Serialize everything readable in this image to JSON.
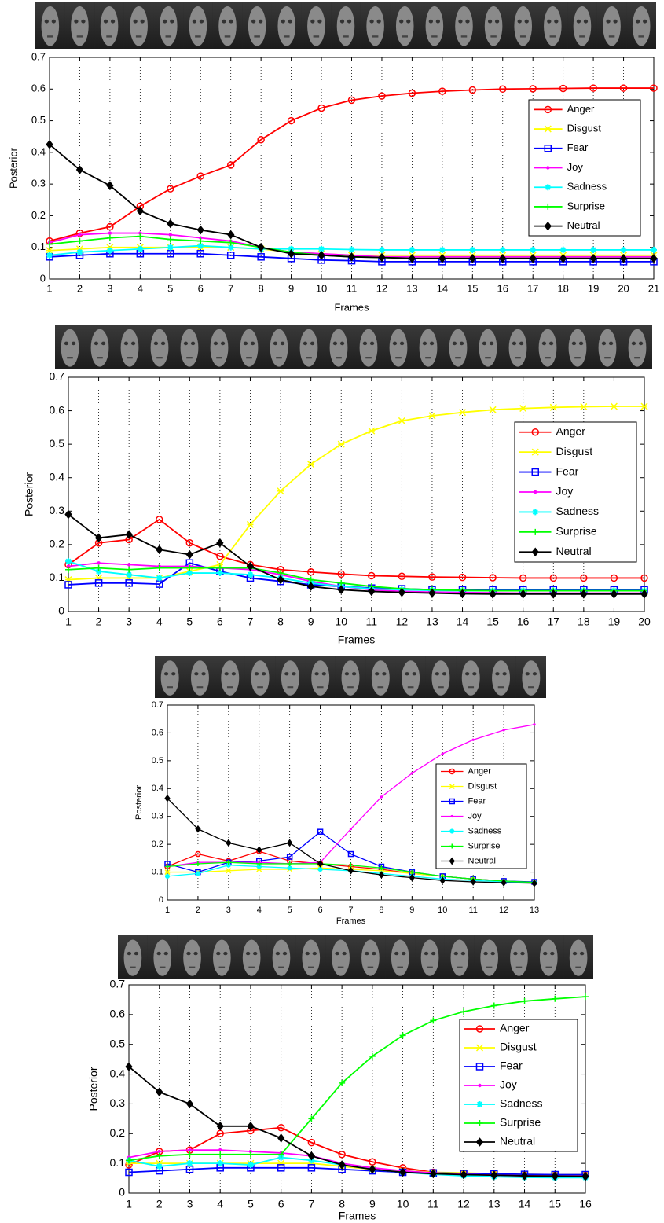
{
  "chart_data": [
    {
      "type": "line",
      "xlabel": "Frames",
      "ylabel": "Posterior",
      "x": [
        1,
        2,
        3,
        4,
        5,
        6,
        7,
        8,
        9,
        10,
        11,
        12,
        13,
        14,
        15,
        16,
        17,
        18,
        19,
        20,
        21
      ],
      "xlim": [
        1,
        21
      ],
      "xticks": [
        1,
        2,
        3,
        4,
        5,
        6,
        7,
        8,
        9,
        10,
        11,
        12,
        13,
        14,
        15,
        16,
        17,
        18,
        19,
        20,
        21
      ],
      "ylim": [
        0,
        0.7
      ],
      "yticks": [
        0,
        0.1,
        0.2,
        0.3,
        0.4,
        0.5,
        0.6,
        0.7
      ],
      "xgrid": true,
      "legend": "right",
      "series": [
        {
          "name": "Anger",
          "color": "#ff0000",
          "marker": "o",
          "values": [
            0.12,
            0.145,
            0.165,
            0.23,
            0.285,
            0.325,
            0.36,
            0.44,
            0.5,
            0.54,
            0.565,
            0.578,
            0.587,
            0.593,
            0.597,
            0.6,
            0.601,
            0.602,
            0.603,
            0.603,
            0.603
          ]
        },
        {
          "name": "Disgust",
          "color": "#ffff00",
          "marker": "x",
          "values": [
            0.09,
            0.095,
            0.1,
            0.1,
            0.1,
            0.1,
            0.1,
            0.095,
            0.085,
            0.08,
            0.075,
            0.075,
            0.075,
            0.075,
            0.075,
            0.075,
            0.075,
            0.075,
            0.075,
            0.075,
            0.075
          ]
        },
        {
          "name": "Fear",
          "color": "#0000ff",
          "marker": "s",
          "values": [
            0.07,
            0.075,
            0.08,
            0.08,
            0.08,
            0.08,
            0.075,
            0.07,
            0.065,
            0.06,
            0.058,
            0.055,
            0.055,
            0.055,
            0.055,
            0.055,
            0.055,
            0.055,
            0.055,
            0.055,
            0.055
          ]
        },
        {
          "name": "Joy",
          "color": "#ff00ff",
          "marker": ".",
          "values": [
            0.115,
            0.14,
            0.145,
            0.145,
            0.14,
            0.13,
            0.12,
            0.1,
            0.085,
            0.08,
            0.075,
            0.07,
            0.07,
            0.07,
            0.07,
            0.07,
            0.07,
            0.07,
            0.07,
            0.07,
            0.07
          ]
        },
        {
          "name": "Sadness",
          "color": "#00ffff",
          "marker": "*",
          "values": [
            0.075,
            0.085,
            0.09,
            0.095,
            0.1,
            0.105,
            0.1,
            0.095,
            0.095,
            0.095,
            0.093,
            0.092,
            0.092,
            0.092,
            0.092,
            0.092,
            0.092,
            0.092,
            0.092,
            0.092,
            0.092
          ]
        },
        {
          "name": "Surprise",
          "color": "#00ff00",
          "marker": "+",
          "values": [
            0.11,
            0.12,
            0.13,
            0.135,
            0.125,
            0.12,
            0.115,
            0.1,
            0.085,
            0.075,
            0.07,
            0.068,
            0.065,
            0.065,
            0.065,
            0.065,
            0.065,
            0.065,
            0.065,
            0.065,
            0.065
          ]
        },
        {
          "name": "Neutral",
          "color": "#000000",
          "marker": "d",
          "values": [
            0.425,
            0.345,
            0.295,
            0.215,
            0.175,
            0.155,
            0.14,
            0.1,
            0.08,
            0.075,
            0.07,
            0.068,
            0.065,
            0.065,
            0.065,
            0.065,
            0.065,
            0.065,
            0.065,
            0.065,
            0.065
          ]
        }
      ]
    },
    {
      "type": "line",
      "xlabel": "Frames",
      "ylabel": "Posterior",
      "x": [
        1,
        2,
        3,
        4,
        5,
        6,
        7,
        8,
        9,
        10,
        11,
        12,
        13,
        14,
        15,
        16,
        17,
        18,
        19,
        20
      ],
      "xlim": [
        1,
        20
      ],
      "xticks": [
        1,
        2,
        3,
        4,
        5,
        6,
        7,
        8,
        9,
        10,
        11,
        12,
        13,
        14,
        15,
        16,
        17,
        18,
        19,
        20
      ],
      "ylim": [
        0,
        0.7
      ],
      "yticks": [
        0,
        0.1,
        0.2,
        0.3,
        0.4,
        0.5,
        0.6,
        0.7
      ],
      "xgrid": true,
      "legend": "right",
      "series": [
        {
          "name": "Anger",
          "color": "#ff0000",
          "marker": "o",
          "values": [
            0.14,
            0.205,
            0.215,
            0.275,
            0.205,
            0.165,
            0.14,
            0.125,
            0.118,
            0.112,
            0.107,
            0.105,
            0.103,
            0.102,
            0.101,
            0.1,
            0.1,
            0.1,
            0.1,
            0.1
          ]
        },
        {
          "name": "Disgust",
          "color": "#ffff00",
          "marker": "x",
          "values": [
            0.095,
            0.1,
            0.1,
            0.1,
            0.12,
            0.14,
            0.26,
            0.36,
            0.44,
            0.5,
            0.54,
            0.57,
            0.585,
            0.595,
            0.603,
            0.607,
            0.61,
            0.612,
            0.613,
            0.613
          ]
        },
        {
          "name": "Fear",
          "color": "#0000ff",
          "marker": "s",
          "values": [
            0.08,
            0.085,
            0.085,
            0.082,
            0.145,
            0.12,
            0.1,
            0.09,
            0.08,
            0.075,
            0.07,
            0.068,
            0.065,
            0.065,
            0.065,
            0.065,
            0.065,
            0.065,
            0.065,
            0.065
          ]
        },
        {
          "name": "Joy",
          "color": "#ff00ff",
          "marker": ".",
          "values": [
            0.135,
            0.145,
            0.14,
            0.135,
            0.135,
            0.13,
            0.125,
            0.11,
            0.09,
            0.075,
            0.065,
            0.06,
            0.058,
            0.057,
            0.056,
            0.055,
            0.055,
            0.055,
            0.055,
            0.055
          ]
        },
        {
          "name": "Sadness",
          "color": "#00ffff",
          "marker": "*",
          "values": [
            0.15,
            0.12,
            0.11,
            0.1,
            0.115,
            0.115,
            0.11,
            0.1,
            0.085,
            0.075,
            0.068,
            0.065,
            0.063,
            0.062,
            0.062,
            0.062,
            0.062,
            0.062,
            0.062,
            0.062
          ]
        },
        {
          "name": "Surprise",
          "color": "#00ff00",
          "marker": "+",
          "values": [
            0.125,
            0.13,
            0.125,
            0.13,
            0.13,
            0.13,
            0.13,
            0.115,
            0.095,
            0.085,
            0.075,
            0.068,
            0.065,
            0.063,
            0.062,
            0.062,
            0.062,
            0.062,
            0.062,
            0.062
          ]
        },
        {
          "name": "Neutral",
          "color": "#000000",
          "marker": "d",
          "values": [
            0.29,
            0.22,
            0.23,
            0.185,
            0.17,
            0.205,
            0.135,
            0.095,
            0.075,
            0.065,
            0.06,
            0.057,
            0.055,
            0.053,
            0.052,
            0.052,
            0.052,
            0.052,
            0.052,
            0.052
          ]
        }
      ]
    },
    {
      "type": "line",
      "xlabel": "Frames",
      "ylabel": "Posterior",
      "x": [
        1,
        2,
        3,
        4,
        5,
        6,
        7,
        8,
        9,
        10,
        11,
        12,
        13
      ],
      "xlim": [
        1,
        13
      ],
      "xticks": [
        1,
        2,
        3,
        4,
        5,
        6,
        7,
        8,
        9,
        10,
        11,
        12,
        13
      ],
      "ylim": [
        0,
        0.7
      ],
      "yticks": [
        0,
        0.1,
        0.2,
        0.3,
        0.4,
        0.5,
        0.6,
        0.7
      ],
      "xgrid": true,
      "legend": "right",
      "series": [
        {
          "name": "Anger",
          "color": "#ff0000",
          "marker": "o",
          "values": [
            0.12,
            0.165,
            0.14,
            0.175,
            0.14,
            0.13,
            0.12,
            0.11,
            0.095,
            0.085,
            0.075,
            0.068,
            0.063
          ]
        },
        {
          "name": "Disgust",
          "color": "#ffff00",
          "marker": "x",
          "values": [
            0.1,
            0.1,
            0.105,
            0.11,
            0.11,
            0.115,
            0.11,
            0.105,
            0.095,
            0.085,
            0.075,
            0.068,
            0.063
          ]
        },
        {
          "name": "Fear",
          "color": "#0000ff",
          "marker": "s",
          "values": [
            0.13,
            0.1,
            0.135,
            0.14,
            0.155,
            0.245,
            0.165,
            0.12,
            0.1,
            0.085,
            0.075,
            0.068,
            0.065
          ]
        },
        {
          "name": "Joy",
          "color": "#ff00ff",
          "marker": ".",
          "values": [
            0.12,
            0.135,
            0.135,
            0.135,
            0.13,
            0.135,
            0.255,
            0.37,
            0.455,
            0.525,
            0.575,
            0.61,
            0.63
          ]
        },
        {
          "name": "Sadness",
          "color": "#00ffff",
          "marker": "*",
          "values": [
            0.085,
            0.095,
            0.125,
            0.12,
            0.115,
            0.11,
            0.105,
            0.095,
            0.085,
            0.075,
            0.07,
            0.065,
            0.062
          ]
        },
        {
          "name": "Surprise",
          "color": "#00ff00",
          "marker": "+",
          "values": [
            0.12,
            0.13,
            0.135,
            0.13,
            0.13,
            0.13,
            0.125,
            0.115,
            0.1,
            0.085,
            0.075,
            0.068,
            0.063
          ]
        },
        {
          "name": "Neutral",
          "color": "#000000",
          "marker": "d",
          "values": [
            0.365,
            0.255,
            0.205,
            0.18,
            0.205,
            0.13,
            0.105,
            0.09,
            0.08,
            0.07,
            0.065,
            0.062,
            0.06
          ]
        }
      ]
    },
    {
      "type": "line",
      "xlabel": "Frames",
      "ylabel": "Posterior",
      "x": [
        1,
        2,
        3,
        4,
        5,
        6,
        7,
        8,
        9,
        10,
        11,
        12,
        13,
        14,
        15,
        16
      ],
      "xlim": [
        1,
        16
      ],
      "xticks": [
        1,
        2,
        3,
        4,
        5,
        6,
        7,
        8,
        9,
        10,
        11,
        12,
        13,
        14,
        15,
        16
      ],
      "ylim": [
        0,
        0.7
      ],
      "yticks": [
        0,
        0.1,
        0.2,
        0.3,
        0.4,
        0.5,
        0.6,
        0.7
      ],
      "xgrid": true,
      "legend": "right",
      "series": [
        {
          "name": "Anger",
          "color": "#ff0000",
          "marker": "o",
          "values": [
            0.095,
            0.14,
            0.145,
            0.2,
            0.21,
            0.22,
            0.17,
            0.13,
            0.105,
            0.085,
            0.07,
            0.065,
            0.062,
            0.06,
            0.06,
            0.06
          ]
        },
        {
          "name": "Disgust",
          "color": "#ffff00",
          "marker": "x",
          "values": [
            0.1,
            0.1,
            0.1,
            0.1,
            0.1,
            0.1,
            0.1,
            0.09,
            0.08,
            0.075,
            0.07,
            0.068,
            0.065,
            0.063,
            0.062,
            0.062
          ]
        },
        {
          "name": "Fear",
          "color": "#0000ff",
          "marker": "s",
          "values": [
            0.07,
            0.075,
            0.08,
            0.085,
            0.085,
            0.085,
            0.085,
            0.08,
            0.075,
            0.07,
            0.068,
            0.066,
            0.065,
            0.063,
            0.062,
            0.062
          ]
        },
        {
          "name": "Joy",
          "color": "#ff00ff",
          "marker": ".",
          "values": [
            0.12,
            0.14,
            0.145,
            0.145,
            0.14,
            0.135,
            0.125,
            0.1,
            0.085,
            0.075,
            0.068,
            0.063,
            0.06,
            0.058,
            0.057,
            0.056
          ]
        },
        {
          "name": "Sadness",
          "color": "#00ffff",
          "marker": "*",
          "values": [
            0.11,
            0.09,
            0.1,
            0.1,
            0.095,
            0.12,
            0.11,
            0.095,
            0.08,
            0.07,
            0.063,
            0.058,
            0.055,
            0.053,
            0.052,
            0.052
          ]
        },
        {
          "name": "Surprise",
          "color": "#00ff00",
          "marker": "+",
          "values": [
            0.11,
            0.125,
            0.13,
            0.13,
            0.13,
            0.13,
            0.25,
            0.37,
            0.46,
            0.53,
            0.58,
            0.61,
            0.63,
            0.645,
            0.653,
            0.66
          ]
        },
        {
          "name": "Neutral",
          "color": "#000000",
          "marker": "d",
          "values": [
            0.425,
            0.34,
            0.3,
            0.225,
            0.225,
            0.185,
            0.125,
            0.095,
            0.08,
            0.07,
            0.065,
            0.062,
            0.06,
            0.058,
            0.057,
            0.056
          ]
        }
      ]
    }
  ]
}
